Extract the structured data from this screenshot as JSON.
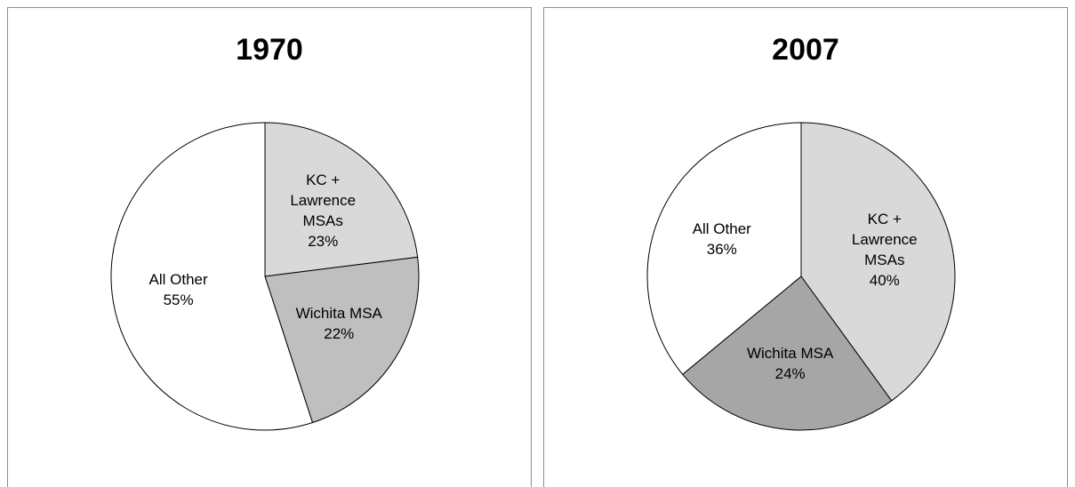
{
  "chart_data": [
    {
      "type": "pie",
      "title": "1970",
      "categories": [
        "KC + Lawrence MSAs",
        "Wichita MSA",
        "All Other"
      ],
      "values": [
        23,
        22,
        55
      ],
      "value_labels": [
        "23%",
        "22%",
        "55%"
      ],
      "colors": [
        "#d9d9d9",
        "#bfbfbf",
        "#ffffff"
      ]
    },
    {
      "type": "pie",
      "title": "2007",
      "categories": [
        "KC + Lawrence MSAs",
        "Wichita MSA",
        "All Other"
      ],
      "values": [
        40,
        24,
        36
      ],
      "value_labels": [
        "40%",
        "24%",
        "36%"
      ],
      "colors": [
        "#d9d9d9",
        "#a6a6a6",
        "#ffffff"
      ]
    }
  ]
}
